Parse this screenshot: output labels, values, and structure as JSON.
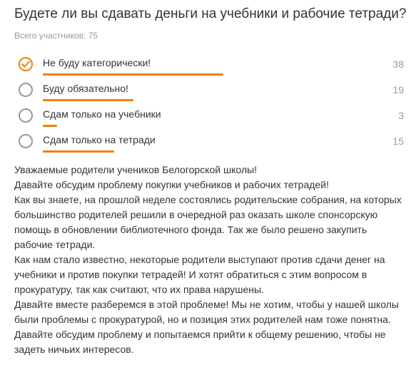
{
  "poll": {
    "title": "Будете ли вы сдавать деньги на учебники и рабочие тетради?",
    "participants": "Всего участников: 75",
    "total": 75,
    "options": [
      {
        "label": "Не буду категорически!",
        "count": "38",
        "votes": 38,
        "selected": true
      },
      {
        "label": "Буду обязательно!",
        "count": "19",
        "votes": 19,
        "selected": false
      },
      {
        "label": "Сдам только на учебники",
        "count": "3",
        "votes": 3,
        "selected": false
      },
      {
        "label": "Сдам только на тетради",
        "count": "15",
        "votes": 15,
        "selected": false
      }
    ]
  },
  "colors": {
    "accent": "#ee8208",
    "radio_border": "#999999",
    "muted_text": "#999999",
    "text": "#333333"
  },
  "article": {
    "paragraphs": [
      "Уважаемые родители учеников Белогорской школы!",
      "Давайте обсудим проблему покупки учебников и рабочих тетрадей!",
      "Как вы знаете,  на прошлой неделе состоялись родительские собрания, на которых большинство родителей решили в очередной раз оказать школе спонсорскую помощь в обновлении библиотечного фонда. Так же было решено закупить рабочие тетради.",
      "Как нам стало известно, некоторые родители выступают против сдачи денег на учебники и против покупки тетрадей! И хотят обратиться с этим вопросом в прокуратуру, так как считают, что их права нарушены.",
      "Давайте вместе разберемся в этой проблеме! Мы не хотим, чтобы у нашей школы были проблемы с прокуратурой, но и позиция этих родителей нам тоже понятна.",
      "Давайте обсудим проблему и попытаемся прийти к общему решению, чтобы не задеть ничьих интересов."
    ]
  }
}
